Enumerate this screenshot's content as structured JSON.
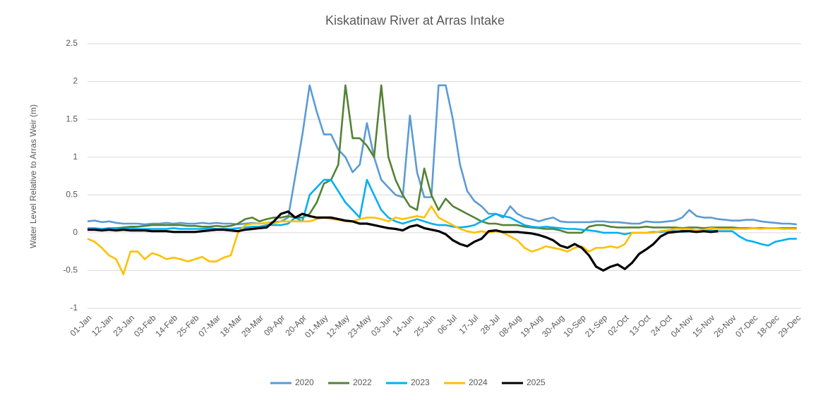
{
  "chart_data": {
    "type": "line",
    "title": "Kiskatinaw River at Arras Intake",
    "y_label": "Water Level Relative to Arras Weir (m)",
    "categories": [
      "01-Jan",
      null,
      null,
      "12-Jan",
      null,
      null,
      "23-Jan",
      null,
      null,
      "03-Feb",
      null,
      null,
      "14-Feb",
      null,
      null,
      "25-Feb",
      null,
      null,
      "07-Mar",
      null,
      null,
      "18-Mar",
      null,
      null,
      "29-Mar",
      null,
      null,
      "09-Apr",
      null,
      null,
      "20-Apr",
      null,
      null,
      "01-May",
      null,
      null,
      "12-May",
      null,
      null,
      "23-May",
      null,
      null,
      "03-Jun",
      null,
      null,
      "14-Jun",
      null,
      null,
      "25-Jun",
      null,
      null,
      "06-Jul",
      null,
      null,
      "17-Jul",
      null,
      null,
      "28-Jul",
      null,
      null,
      "08-Aug",
      null,
      null,
      "19-Aug",
      null,
      null,
      "30-Aug",
      null,
      null,
      "10-Sep",
      null,
      null,
      "21-Sep",
      null,
      null,
      "02-Oct",
      null,
      null,
      "13-Oct",
      null,
      null,
      "24-Oct",
      null,
      null,
      "04-Nov",
      null,
      null,
      "15-Nov",
      null,
      null,
      "26-Nov",
      null,
      null,
      "07-Dec",
      null,
      null,
      "18-Dec",
      null,
      null,
      "29-Dec"
    ],
    "series": [
      {
        "name": "2020",
        "color": "#5b9bd5",
        "values": [
          0.15,
          0.16,
          0.14,
          0.15,
          0.13,
          0.12,
          0.12,
          0.12,
          0.11,
          0.12,
          0.12,
          0.13,
          0.12,
          0.13,
          0.12,
          0.12,
          0.13,
          0.12,
          0.13,
          0.12,
          0.12,
          0.11,
          0.12,
          0.13,
          0.12,
          0.13,
          0.14,
          0.15,
          0.2,
          0.75,
          1.3,
          1.95,
          1.6,
          1.3,
          1.3,
          1.1,
          1.0,
          0.8,
          0.9,
          1.45,
          1.0,
          0.7,
          0.6,
          0.5,
          0.47,
          1.55,
          0.8,
          0.47,
          0.47,
          1.95,
          1.95,
          1.5,
          0.9,
          0.55,
          0.42,
          0.35,
          0.25,
          0.25,
          0.2,
          0.35,
          0.25,
          0.2,
          0.18,
          0.15,
          0.18,
          0.2,
          0.15,
          0.14,
          0.14,
          0.14,
          0.14,
          0.15,
          0.15,
          0.14,
          0.14,
          0.13,
          0.12,
          0.12,
          0.15,
          0.14,
          0.14,
          0.15,
          0.16,
          0.2,
          0.3,
          0.22,
          0.2,
          0.2,
          0.18,
          0.17,
          0.16,
          0.16,
          0.17,
          0.17,
          0.15,
          0.14,
          0.13,
          0.12,
          0.12,
          0.11
        ]
      },
      {
        "name": "2022",
        "color": "#548235",
        "values": [
          0.05,
          0.05,
          0.05,
          0.06,
          0.06,
          0.07,
          0.08,
          0.08,
          0.09,
          0.1,
          0.1,
          0.1,
          0.1,
          0.1,
          0.09,
          0.09,
          0.08,
          0.08,
          0.09,
          0.08,
          0.09,
          0.12,
          0.18,
          0.2,
          0.15,
          0.18,
          0.2,
          0.2,
          0.22,
          0.2,
          0.2,
          0.25,
          0.4,
          0.65,
          0.7,
          0.9,
          1.95,
          1.25,
          1.25,
          1.15,
          1.0,
          1.95,
          1.0,
          0.7,
          0.5,
          0.35,
          0.3,
          0.85,
          0.5,
          0.3,
          0.45,
          0.35,
          0.3,
          0.25,
          0.2,
          0.15,
          0.12,
          0.12,
          0.1,
          0.1,
          0.1,
          0.08,
          0.07,
          0.06,
          0.05,
          0.05,
          0.03,
          0,
          0,
          0,
          0.08,
          0.1,
          0.1,
          0.08,
          0.07,
          0.07,
          0.07,
          0.07,
          0.08,
          0.07,
          0.07,
          0.07,
          0.07,
          0.06,
          0.07,
          0.07,
          0.06,
          0.07,
          0.07,
          0.07,
          0.07,
          0.06,
          0.06,
          0.06,
          0.06,
          0.06,
          0.06,
          0.06,
          0.06,
          0.06
        ]
      },
      {
        "name": "2023",
        "color": "#00b0f0",
        "values": [
          0.06,
          0.06,
          0.05,
          0.06,
          0.05,
          0.05,
          0.06,
          0.05,
          0.05,
          0.05,
          0.05,
          0.05,
          0.06,
          0.05,
          0.05,
          0.05,
          0.05,
          0.06,
          0.05,
          0.05,
          0.05,
          0.06,
          0.07,
          0.08,
          0.08,
          0.1,
          0.1,
          0.1,
          0.12,
          0.2,
          0.15,
          0.5,
          0.6,
          0.7,
          0.7,
          0.55,
          0.4,
          0.3,
          0.2,
          0.7,
          0.5,
          0.3,
          0.2,
          0.15,
          0.12,
          0.15,
          0.18,
          0.15,
          0.12,
          0.1,
          0.1,
          0.08,
          0.07,
          0.08,
          0.1,
          0.15,
          0.2,
          0.25,
          0.22,
          0.2,
          0.15,
          0.1,
          0.08,
          0.07,
          0.08,
          0.07,
          0.06,
          0.05,
          0.05,
          0.04,
          0.03,
          0.02,
          0,
          0,
          0,
          -0.02,
          0,
          0,
          0,
          0.01,
          0.01,
          0.02,
          0.02,
          0.01,
          0.02,
          0.02,
          0.02,
          0.03,
          0.02,
          0.02,
          0.02,
          -0.05,
          -0.1,
          -0.12,
          -0.15,
          -0.17,
          -0.12,
          -0.1,
          -0.08,
          -0.08
        ]
      },
      {
        "name": "2024",
        "color": "#ffc000",
        "values": [
          -0.08,
          -0.12,
          -0.2,
          -0.3,
          -0.35,
          -0.55,
          -0.25,
          -0.25,
          -0.35,
          -0.27,
          -0.3,
          -0.35,
          -0.33,
          -0.35,
          -0.38,
          -0.35,
          -0.32,
          -0.38,
          -0.38,
          -0.33,
          -0.3,
          0,
          0.1,
          0.12,
          0.12,
          0.13,
          0.12,
          0.15,
          0.15,
          0.15,
          0.15,
          0.15,
          0.18,
          0.2,
          0.18,
          0.17,
          0.15,
          0.15,
          0.18,
          0.2,
          0.2,
          0.18,
          0.15,
          0.2,
          0.18,
          0.2,
          0.22,
          0.2,
          0.35,
          0.2,
          0.15,
          0.1,
          0.05,
          0.02,
          0,
          0.02,
          0,
          0.02,
          0,
          -0.05,
          -0.1,
          -0.2,
          -0.25,
          -0.22,
          -0.18,
          -0.2,
          -0.22,
          -0.25,
          -0.2,
          -0.18,
          -0.25,
          -0.2,
          -0.2,
          -0.18,
          -0.2,
          -0.15,
          0,
          0,
          0,
          0,
          0.02,
          0.03,
          0.05,
          0.05,
          0.05,
          0.03,
          0.04,
          0.06,
          0.05,
          0.05,
          0.05,
          0.05,
          0.05,
          0.06,
          0.05,
          0.06,
          0.06,
          0.05,
          0.05,
          0.05
        ]
      },
      {
        "name": "2025",
        "color": "#000000",
        "values": [
          0.04,
          0.04,
          0.03,
          0.04,
          0.03,
          0.04,
          0.03,
          0.03,
          0.03,
          0.02,
          0.02,
          0.02,
          0.01,
          0.01,
          0.01,
          0.01,
          0.02,
          0.03,
          0.04,
          0.04,
          0.03,
          0.02,
          0.04,
          0.05,
          0.06,
          0.07,
          0.15,
          0.25,
          0.28,
          0.2,
          0.25,
          0.22,
          0.2,
          0.2,
          0.2,
          0.18,
          0.16,
          0.15,
          0.12,
          0.12,
          0.1,
          0.08,
          0.06,
          0.05,
          0.03,
          0.08,
          0.1,
          0.06,
          0.04,
          0.02,
          -0.02,
          -0.1,
          -0.15,
          -0.18,
          -0.12,
          -0.08,
          0.02,
          0.03,
          0.01,
          0.01,
          0.01,
          0,
          -0.01,
          -0.03,
          -0.06,
          -0.1,
          -0.17,
          -0.2,
          -0.15,
          -0.2,
          -0.3,
          -0.45,
          -0.5,
          -0.45,
          -0.42,
          -0.48,
          -0.4,
          -0.28,
          -0.22,
          -0.15,
          -0.05,
          0,
          0.01,
          0.02,
          0.02,
          0.01,
          0.02,
          0.01,
          0.02,
          null,
          null,
          null,
          null,
          null,
          null,
          null,
          null,
          null,
          null,
          null
        ]
      }
    ],
    "ylim": [
      -1,
      2.5
    ],
    "yticks": [
      2.5,
      2,
      1.5,
      1,
      0.5,
      0,
      -0.5,
      -1
    ],
    "grid": true,
    "legend": "bottom"
  }
}
